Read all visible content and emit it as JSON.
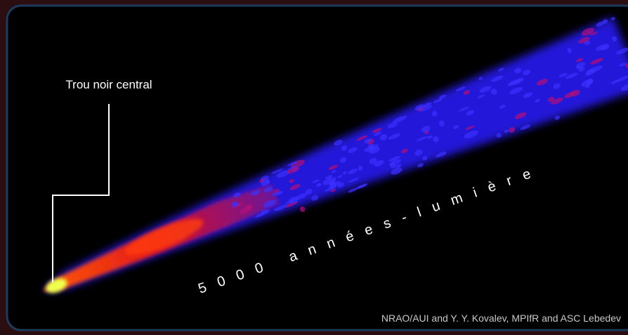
{
  "labels": {
    "black_hole": "Trou noir central",
    "scale": "5000 années-lumière"
  },
  "credit": "NRAO/AUI and Y. Y. Kovalev, MPIfR and ASC Lebedev"
}
